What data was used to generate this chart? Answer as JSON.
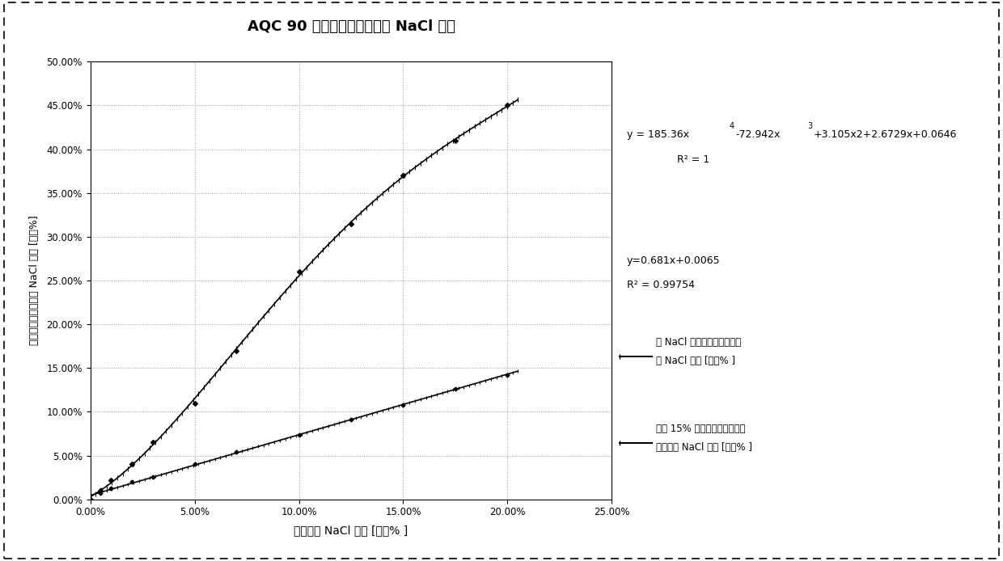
{
  "title": "AQC 90 水凝胶和干凝胶中的 NaCl 含量",
  "xlabel": "溶液中的 NaCl 浓度 [重量% ]",
  "ylabel": "水凝胶和干凝胶中的 NaCl 浓度 [重量%]",
  "xlim": [
    0.0,
    0.25
  ],
  "ylim": [
    0.0,
    0.5
  ],
  "xticks": [
    0.0,
    0.05,
    0.1,
    0.15,
    0.2,
    0.25
  ],
  "yticks": [
    0.0,
    0.05,
    0.1,
    0.15,
    0.2,
    0.25,
    0.3,
    0.35,
    0.4,
    0.45,
    0.5
  ],
  "hydrogel_x": [
    0.0,
    0.005,
    0.01,
    0.02,
    0.03,
    0.05,
    0.07,
    0.1,
    0.125,
    0.15,
    0.175,
    0.2
  ],
  "hydrogel_y": [
    0.0,
    0.01,
    0.022,
    0.04,
    0.065,
    0.11,
    0.17,
    0.26,
    0.315,
    0.37,
    0.41,
    0.45
  ],
  "xerogel_x": [
    0.0,
    0.005,
    0.01,
    0.02,
    0.03,
    0.05,
    0.07,
    0.1,
    0.125,
    0.15,
    0.175,
    0.2
  ],
  "xerogel_y": [
    0.0,
    0.0075,
    0.013,
    0.02,
    0.026,
    0.04,
    0.054,
    0.074,
    0.091,
    0.108,
    0.126,
    0.142
  ],
  "eq1_line1": "y = 185.36x",
  "eq1_exp1": "4",
  "eq1_line2": "-72.942x",
  "eq1_exp2": "3",
  "eq1_rest": "+3.105x2+2.6729x+0.0646",
  "eq1_r2": "R² = 1",
  "eq2": "y=0.681x+0.0065",
  "eq2_r2": "R² = 0.99754",
  "legend1_line1": "与 NaCl 溶液平衡的水凝胶中",
  "legend1_line2": "的 NaCl 含量 [重量% ]",
  "legend2_line1": "包含 15% 重量残留水分的干凝",
  "legend2_line2": "胶茎中的 NaCl 浓度 [重量% ]",
  "bg_color": "#ffffff",
  "grid_color": "#999999"
}
